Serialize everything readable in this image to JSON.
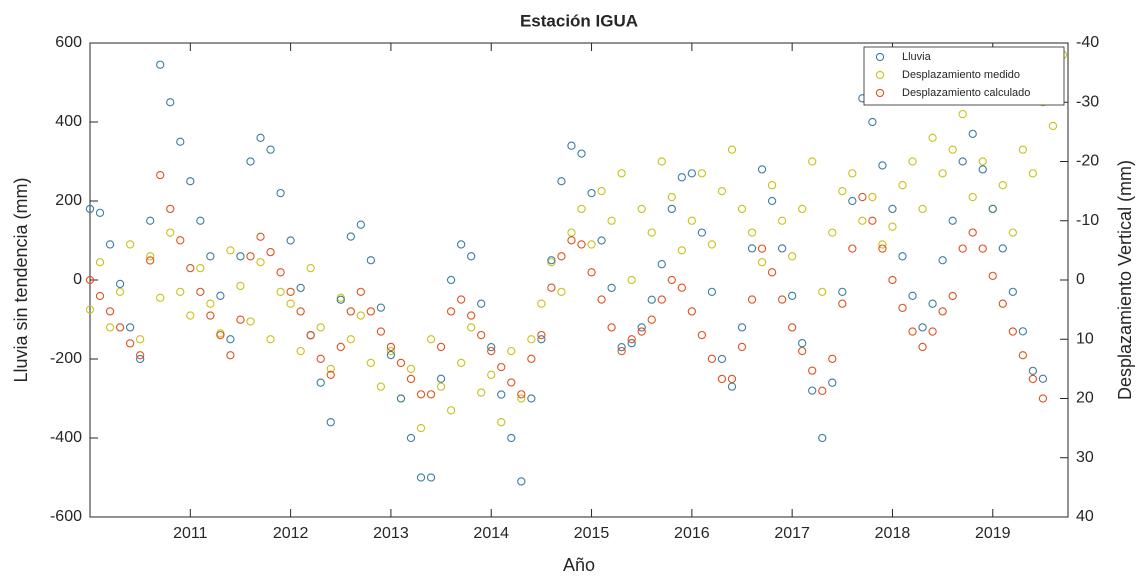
{
  "chart_data": {
    "type": "scatter",
    "title": "Estación IGUA",
    "x_label": "Año",
    "y_label": "Lluvia sin tendencia (mm)",
    "y2_label": "Desplazamiento Vertical (mm)",
    "xlim": [
      2010,
      2019.75
    ],
    "xticks": [
      2011,
      2012,
      2013,
      2014,
      2015,
      2016,
      2017,
      2018,
      2019
    ],
    "ylim": [
      -600,
      600
    ],
    "yticks": [
      -600,
      -400,
      -200,
      0,
      200,
      400,
      600
    ],
    "y2lim": [
      40,
      -40
    ],
    "y2ticks": [
      -40,
      -30,
      -20,
      -10,
      0,
      10,
      20,
      30,
      40
    ],
    "legend": "top-right",
    "x": [
      2010.0,
      2010.1,
      2010.2,
      2010.3,
      2010.4,
      2010.5,
      2010.6,
      2010.7,
      2010.8,
      2010.9,
      2011.0,
      2011.1,
      2011.2,
      2011.3,
      2011.4,
      2011.5,
      2011.6,
      2011.7,
      2011.8,
      2011.9,
      2012.0,
      2012.1,
      2012.2,
      2012.3,
      2012.4,
      2012.5,
      2012.6,
      2012.7,
      2012.8,
      2012.9,
      2013.0,
      2013.1,
      2013.2,
      2013.3,
      2013.4,
      2013.5,
      2013.6,
      2013.7,
      2013.8,
      2013.9,
      2014.0,
      2014.1,
      2014.2,
      2014.3,
      2014.4,
      2014.5,
      2014.6,
      2014.7,
      2014.8,
      2014.9,
      2015.0,
      2015.1,
      2015.2,
      2015.3,
      2015.4,
      2015.5,
      2015.6,
      2015.7,
      2015.8,
      2015.9,
      2016.0,
      2016.1,
      2016.2,
      2016.3,
      2016.4,
      2016.5,
      2016.6,
      2016.7,
      2016.8,
      2016.9,
      2017.0,
      2017.1,
      2017.2,
      2017.3,
      2017.4,
      2017.5,
      2017.6,
      2017.7,
      2017.8,
      2017.9,
      2018.0,
      2018.1,
      2018.2,
      2018.3,
      2018.4,
      2018.5,
      2018.6,
      2018.7,
      2018.8,
      2018.9,
      2019.0,
      2019.1,
      2019.2,
      2019.3,
      2019.4,
      2019.5,
      2019.6,
      2019.7
    ],
    "series": [
      {
        "name": "Lluvia",
        "color": "#3b7ea1",
        "axis": "y",
        "values": [
          180,
          170,
          90,
          -10,
          -120,
          -200,
          150,
          545,
          450,
          350,
          250,
          150,
          60,
          -40,
          -150,
          60,
          300,
          360,
          330,
          220,
          100,
          -20,
          -140,
          -260,
          -360,
          -50,
          110,
          140,
          50,
          -70,
          -190,
          -300,
          -400,
          -500,
          -500,
          -250,
          0,
          90,
          60,
          -60,
          -170,
          -290,
          -400,
          -510,
          -300,
          -150,
          50,
          250,
          340,
          320,
          220,
          100,
          -20,
          -170,
          -160,
          -120,
          -50,
          40,
          180,
          260,
          270,
          120,
          -30,
          -200,
          -270,
          -120,
          80,
          280,
          200,
          80,
          -40,
          -160,
          -280,
          -400,
          -260,
          -30,
          200,
          460,
          400,
          290,
          180,
          60,
          -40,
          -120,
          -60,
          50,
          150,
          300,
          370,
          280,
          180,
          80,
          -30,
          -130,
          -230,
          -250,
          null,
          null
        ]
      },
      {
        "name": "Desplazamiento medido",
        "color": "#c8c21a",
        "axis": "y2",
        "values": [
          5,
          -3,
          8,
          2,
          -6,
          10,
          -4,
          3,
          -8,
          2,
          6,
          -2,
          4,
          9,
          -5,
          1,
          7,
          -3,
          10,
          2,
          4,
          12,
          -2,
          8,
          15,
          3,
          10,
          6,
          14,
          18,
          12,
          20,
          15,
          25,
          10,
          18,
          22,
          14,
          8,
          19,
          16,
          24,
          12,
          20,
          10,
          4,
          -3,
          2,
          -8,
          -12,
          -6,
          -15,
          -10,
          -18,
          0,
          -12,
          -8,
          -20,
          -14,
          -5,
          -10,
          -18,
          -6,
          -15,
          -22,
          -12,
          -8,
          -3,
          -16,
          -10,
          -4,
          -12,
          -20,
          2,
          -8,
          -15,
          -18,
          -10,
          -14,
          -6,
          -9,
          -16,
          -20,
          -12,
          -24,
          -18,
          -22,
          -28,
          -14,
          -20,
          -12,
          -16,
          -8,
          -22,
          -18,
          -30,
          -26,
          -38
        ]
      },
      {
        "name": "Desplazamiento calculado",
        "color": "#e0521f",
        "axis": "y2",
        "values": [
          0,
          2.7,
          5.3,
          8,
          10.7,
          12.7,
          -3.3,
          -17.7,
          -12,
          -6.7,
          -2,
          2,
          6,
          9.3,
          12.7,
          6.7,
          -4,
          -7.3,
          -4.7,
          -1.3,
          2,
          5.3,
          9.3,
          13.3,
          16,
          11.3,
          5.3,
          2,
          5.3,
          8.7,
          11.3,
          14,
          16.7,
          19.3,
          19.3,
          11.3,
          5.3,
          3.3,
          6,
          9.3,
          12,
          14.7,
          17.3,
          19.3,
          13.3,
          9.3,
          1.3,
          -4,
          -6.7,
          -6,
          -1.3,
          3.3,
          8,
          12,
          10,
          8.7,
          6.7,
          3.3,
          0,
          1.3,
          5.3,
          9.3,
          13.3,
          16.7,
          16.7,
          11.3,
          3.3,
          -5.3,
          -1.3,
          3.3,
          8,
          12,
          15.3,
          18.7,
          13.3,
          4,
          -5.3,
          -14,
          -10,
          -5.3,
          0,
          4.7,
          8.7,
          11.3,
          8.7,
          5.3,
          2.7,
          -5.3,
          -8,
          -5.3,
          -0.7,
          4,
          8.7,
          12.7,
          16.7,
          20,
          null,
          null
        ]
      }
    ]
  }
}
